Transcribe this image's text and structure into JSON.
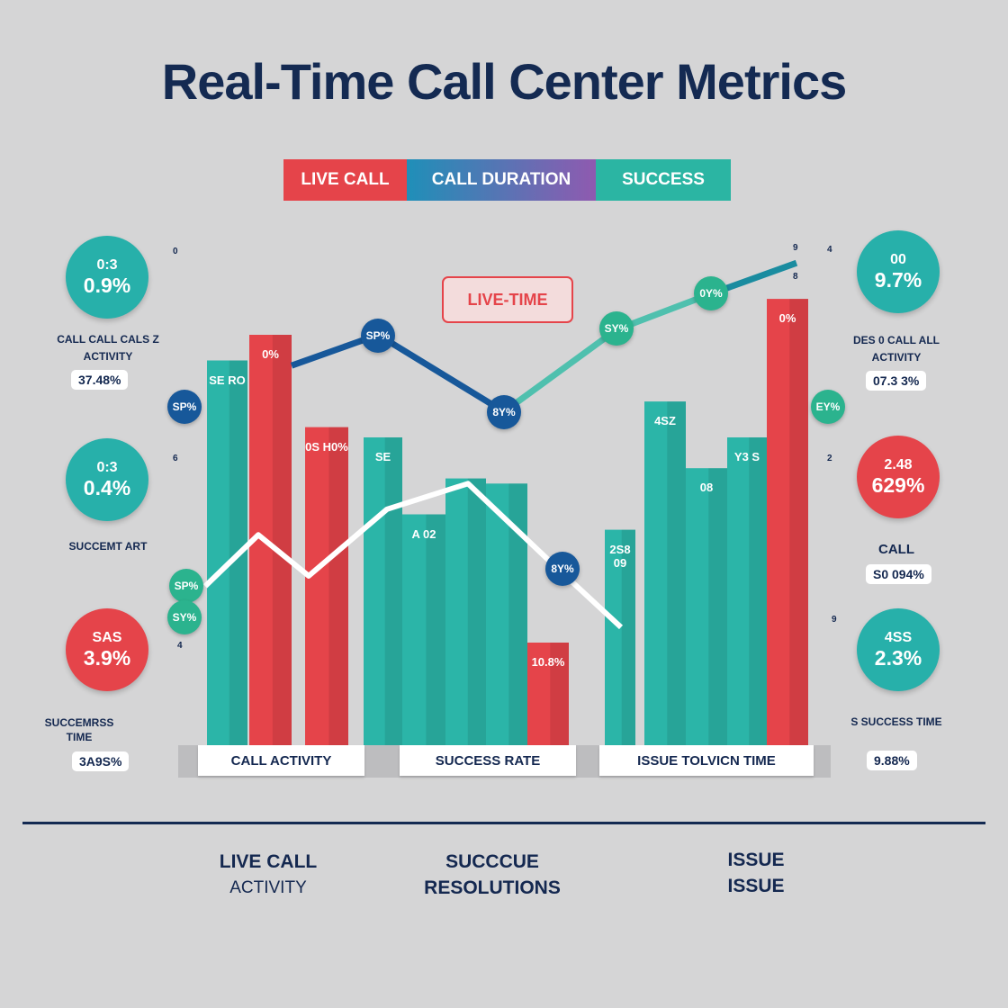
{
  "title": "Real-Time Call Center Metrics",
  "legend": [
    {
      "label": "LIVE CALL",
      "color": "#e5444a"
    },
    {
      "label": "CALL DURATION",
      "color": "#1f8fb8"
    },
    {
      "label": "SUCCESS",
      "color": "#2bb5a3"
    }
  ],
  "live_time_tag": "LIVE-TIME",
  "left_kpis": [
    {
      "small": "0:3",
      "big": "0.9%",
      "color": "#27b0aa",
      "label": "CALL CALL CALS Z ACTIVITY",
      "value": "37.48%"
    },
    {
      "small": "0:3",
      "big": "0.4%",
      "color": "#27b0aa",
      "label": "SUCCEMT ART",
      "value": ""
    },
    {
      "small": "SAS",
      "big": "3.9%",
      "color": "#e5444a",
      "label": "SUCCEMRSS TIME",
      "value": "3A9S%"
    }
  ],
  "right_kpis": [
    {
      "small": "00",
      "big": "9.7%",
      "color": "#27b0aa",
      "label": "DES 0 CALL ALL ACTIVITY",
      "value": "07.3 3%"
    },
    {
      "small": "2.48",
      "big": "629%",
      "color": "#e5444a",
      "label": "CALL",
      "value": "S0 094%"
    },
    {
      "small": "4SS",
      "big": "2.3%",
      "color": "#27b0aa",
      "label": "S SUCCESS TIME",
      "value": "9.88%"
    }
  ],
  "axis_ticks": {
    "left": [
      "0",
      "6",
      "4"
    ],
    "right": [
      "4",
      "2",
      "9"
    ],
    "top_right": [
      "9",
      "8"
    ]
  },
  "categories": [
    "CALL ACTIVITY",
    "SUCCESS RATE",
    "ISSUE TOLVICN TIME"
  ],
  "bottom_labels": [
    {
      "line1": "LIVE CALL",
      "line2": "ACTIVITY"
    },
    {
      "line1": "SUCCCUE",
      "line2": "RESOLUTIONS"
    },
    {
      "line1": "ISSUE",
      "line2": "ISSUE"
    }
  ],
  "colors": {
    "teal": "#2bb5a8",
    "red": "#e5444a",
    "navy": "#17589a",
    "green": "#2bb38e",
    "background": "#d5d5d6"
  },
  "chart_data": {
    "type": "bar",
    "title": "Real-Time Call Center Metrics",
    "ylim": [
      0,
      100
    ],
    "grid": false,
    "legend_placement": "top",
    "bars": [
      {
        "value": 75,
        "color": "teal",
        "label": "SE RO"
      },
      {
        "value": 80,
        "color": "red",
        "label": "0%"
      },
      {
        "value": 62,
        "color": "red",
        "label": "0S H0%"
      },
      {
        "value": 60,
        "color": "teal",
        "label": "SE"
      },
      {
        "value": 45,
        "color": "teal",
        "label": "A 02"
      },
      {
        "value": 52,
        "color": "teal",
        "label": ""
      },
      {
        "value": 51,
        "color": "teal",
        "label": ""
      },
      {
        "value": 20,
        "color": "red",
        "label": "10.8%"
      },
      {
        "value": 42,
        "color": "teal",
        "label": "2S8 09"
      },
      {
        "value": 67,
        "color": "teal",
        "label": "4SZ"
      },
      {
        "value": 54,
        "color": "teal",
        "label": "08"
      },
      {
        "value": 60,
        "color": "teal",
        "label": "Y3 S"
      },
      {
        "value": 87,
        "color": "red",
        "label": "0%"
      }
    ],
    "series": [
      {
        "color": "navy-to-teal",
        "values": [
          74,
          80,
          65,
          81,
          88,
          94
        ]
      },
      {
        "color": "white",
        "values": [
          31,
          41,
          33,
          46,
          51,
          36,
          23
        ]
      }
    ],
    "point_badges": [
      {
        "text": "SP%",
        "color": "navy"
      },
      {
        "text": "SP%",
        "color": "navy"
      },
      {
        "text": "8Y%",
        "color": "navy"
      },
      {
        "text": "SY%",
        "color": "green"
      },
      {
        "text": "0Y%",
        "color": "green"
      },
      {
        "text": "SP%",
        "color": "green"
      },
      {
        "text": "SY%",
        "color": "green"
      },
      {
        "text": "8Y%",
        "color": "navy"
      },
      {
        "text": "EY%",
        "color": "green"
      }
    ]
  }
}
